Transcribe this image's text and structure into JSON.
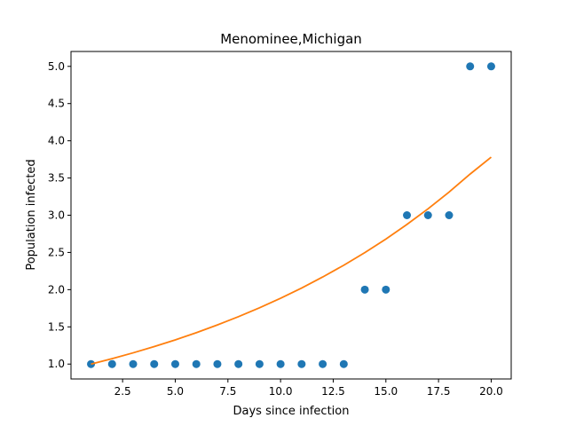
{
  "chart_data": {
    "type": "scatter",
    "title": "Menominee,Michigan",
    "xlabel": "Days since infection",
    "ylabel": "Population infected",
    "xlim": [
      0.05,
      20.95
    ],
    "ylim": [
      0.8,
      5.2
    ],
    "grid": false,
    "legend": "none",
    "xticks": [
      "2.5",
      "5.0",
      "7.5",
      "10.0",
      "12.5",
      "15.0",
      "17.5",
      "20.0"
    ],
    "xtick_values": [
      2.5,
      5.0,
      7.5,
      10.0,
      12.5,
      15.0,
      17.5,
      20.0
    ],
    "yticks": [
      "1.0",
      "1.5",
      "2.0",
      "2.5",
      "3.0",
      "3.5",
      "4.0",
      "4.5",
      "5.0"
    ],
    "ytick_values": [
      1.0,
      1.5,
      2.0,
      2.5,
      3.0,
      3.5,
      4.0,
      4.5,
      5.0
    ],
    "series": [
      {
        "type": "scatter",
        "color": "#1f77b4",
        "x": [
          1,
          2,
          3,
          4,
          5,
          6,
          7,
          8,
          9,
          10,
          11,
          12,
          13,
          14,
          15,
          16,
          17,
          18,
          19,
          20
        ],
        "y": [
          1,
          1,
          1,
          1,
          1,
          1,
          1,
          1,
          1,
          1,
          1,
          1,
          1,
          2,
          2,
          3,
          3,
          3,
          5,
          5
        ]
      },
      {
        "type": "line",
        "color": "#ff7f0e",
        "x": [
          1,
          2,
          3,
          4,
          5,
          6,
          7,
          8,
          9,
          10,
          11,
          12,
          13,
          14,
          15,
          16,
          17,
          18,
          19,
          20
        ],
        "y": [
          1.0,
          1.073,
          1.151,
          1.235,
          1.325,
          1.422,
          1.526,
          1.637,
          1.756,
          1.885,
          2.022,
          2.17,
          2.328,
          2.498,
          2.68,
          2.876,
          3.086,
          3.311,
          3.553,
          3.78
        ]
      }
    ]
  }
}
